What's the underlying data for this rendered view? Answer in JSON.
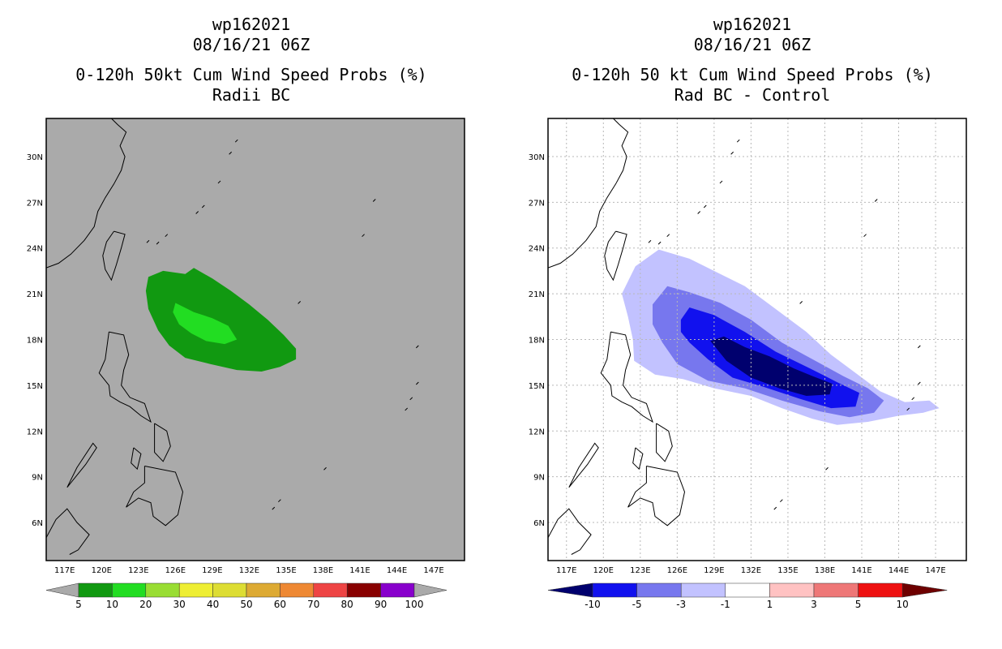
{
  "chart_data": [
    {
      "type": "heatmap",
      "id": "left",
      "title_lines": [
        "wp162021",
        "08/16/21 06Z",
        "0-120h 50kt Cum Wind Speed Probs (%)",
        "Radii BC"
      ],
      "x_ticks": [
        "117E",
        "120E",
        "123E",
        "126E",
        "129E",
        "132E",
        "135E",
        "138E",
        "141E",
        "144E",
        "147E"
      ],
      "y_ticks": [
        "30N",
        "27N",
        "24N",
        "21N",
        "18N",
        "15N",
        "12N",
        "9N",
        "6N"
      ],
      "xlim": [
        115.5,
        149.5
      ],
      "ylim": [
        3.5,
        32.5
      ],
      "grid": false,
      "background": "#aaaaaa",
      "levels": [
        {
          "label": "5-10",
          "color": "#119911",
          "polygon": [
            [
              123.8,
              22.1
            ],
            [
              125.0,
              22.5
            ],
            [
              126.8,
              22.3
            ],
            [
              127.5,
              22.7
            ],
            [
              129.0,
              22.0
            ],
            [
              130.5,
              21.2
            ],
            [
              132.0,
              20.3
            ],
            [
              133.5,
              19.3
            ],
            [
              134.8,
              18.3
            ],
            [
              135.8,
              17.4
            ],
            [
              135.8,
              16.7
            ],
            [
              134.5,
              16.2
            ],
            [
              133.0,
              15.9
            ],
            [
              131.0,
              16.0
            ],
            [
              128.8,
              16.4
            ],
            [
              126.8,
              16.8
            ],
            [
              125.5,
              17.6
            ],
            [
              124.6,
              18.6
            ],
            [
              123.8,
              20.0
            ],
            [
              123.6,
              21.2
            ]
          ]
        },
        {
          "label": "10-20",
          "color": "#22dd22",
          "polygon": [
            [
              126.0,
              20.4
            ],
            [
              127.5,
              19.8
            ],
            [
              129.0,
              19.4
            ],
            [
              130.3,
              18.9
            ],
            [
              131.0,
              18.0
            ],
            [
              130.0,
              17.7
            ],
            [
              128.5,
              17.9
            ],
            [
              127.3,
              18.4
            ],
            [
              126.3,
              19.0
            ],
            [
              125.8,
              19.8
            ]
          ]
        }
      ],
      "colorbar": {
        "labels": [
          "5",
          "10",
          "20",
          "30",
          "40",
          "50",
          "60",
          "70",
          "80",
          "90",
          "100"
        ],
        "colors": [
          "#119911",
          "#22dd22",
          "#99dd33",
          "#eeee33",
          "#dddd33",
          "#ddaa33",
          "#ee8833",
          "#ee4444",
          "#880000",
          "#8800cc"
        ],
        "end_colors": [
          "#aaaaaa",
          "#aaaaaa"
        ]
      }
    },
    {
      "type": "heatmap",
      "id": "right",
      "title_lines": [
        "wp162021",
        "08/16/21 06Z",
        "0-120h 50 kt Cum Wind Speed Probs (%)",
        "Rad BC - Control"
      ],
      "x_ticks": [
        "117E",
        "120E",
        "123E",
        "126E",
        "129E",
        "132E",
        "135E",
        "138E",
        "141E",
        "144E",
        "147E"
      ],
      "y_ticks": [
        "30N",
        "27N",
        "24N",
        "21N",
        "18N",
        "15N",
        "12N",
        "9N",
        "6N"
      ],
      "xlim": [
        115.5,
        149.5
      ],
      "ylim": [
        3.5,
        32.5
      ],
      "grid": true,
      "background": "#ffffff",
      "levels": [
        {
          "label": "-1 to -3",
          "color": "#c2c2ff",
          "polygon": [
            [
              121.5,
              21.0
            ],
            [
              122.6,
              22.8
            ],
            [
              124.5,
              23.9
            ],
            [
              127.0,
              23.3
            ],
            [
              129.5,
              22.3
            ],
            [
              131.5,
              21.5
            ],
            [
              134.0,
              20.0
            ],
            [
              136.5,
              18.5
            ],
            [
              138.5,
              17.0
            ],
            [
              140.5,
              15.8
            ],
            [
              142.5,
              14.6
            ],
            [
              144.5,
              13.9
            ],
            [
              146.5,
              14.0
            ],
            [
              147.3,
              13.5
            ],
            [
              146.0,
              13.2
            ],
            [
              144.0,
              13.0
            ],
            [
              141.5,
              12.6
            ],
            [
              139.0,
              12.4
            ],
            [
              137.0,
              12.8
            ],
            [
              134.5,
              13.5
            ],
            [
              132.0,
              14.3
            ],
            [
              129.0,
              14.8
            ],
            [
              126.5,
              15.4
            ],
            [
              124.2,
              15.7
            ],
            [
              122.5,
              16.6
            ],
            [
              122.4,
              18.0
            ],
            [
              122.0,
              19.5
            ]
          ]
        },
        {
          "label": "-3 to -5",
          "color": "#7777ee",
          "polygon": [
            [
              124.0,
              20.3
            ],
            [
              125.2,
              21.5
            ],
            [
              127.0,
              21.1
            ],
            [
              129.5,
              20.4
            ],
            [
              132.0,
              19.3
            ],
            [
              134.5,
              17.8
            ],
            [
              137.0,
              16.7
            ],
            [
              139.5,
              15.6
            ],
            [
              141.5,
              14.8
            ],
            [
              142.8,
              14.0
            ],
            [
              142.0,
              13.2
            ],
            [
              140.0,
              12.9
            ],
            [
              137.5,
              13.3
            ],
            [
              134.5,
              14.0
            ],
            [
              131.5,
              14.8
            ],
            [
              128.5,
              15.3
            ],
            [
              126.0,
              16.4
            ],
            [
              124.8,
              17.8
            ],
            [
              124.0,
              19.0
            ]
          ]
        },
        {
          "label": "-5 to -10",
          "color": "#1111ee",
          "polygon": [
            [
              126.3,
              19.3
            ],
            [
              127.0,
              20.1
            ],
            [
              129.0,
              19.6
            ],
            [
              131.5,
              18.5
            ],
            [
              134.0,
              17.2
            ],
            [
              136.8,
              16.1
            ],
            [
              139.0,
              15.2
            ],
            [
              140.8,
              14.5
            ],
            [
              140.5,
              13.6
            ],
            [
              138.5,
              13.5
            ],
            [
              136.0,
              14.1
            ],
            [
              133.0,
              14.9
            ],
            [
              130.5,
              15.5
            ],
            [
              128.5,
              16.7
            ],
            [
              127.0,
              17.8
            ],
            [
              126.3,
              18.5
            ]
          ]
        },
        {
          "label": "< -10",
          "color": "#00006e",
          "polygon": [
            [
              128.7,
              17.9
            ],
            [
              129.8,
              18.2
            ],
            [
              131.5,
              17.5
            ],
            [
              133.5,
              16.9
            ],
            [
              135.5,
              16.1
            ],
            [
              137.0,
              15.6
            ],
            [
              138.6,
              15.1
            ],
            [
              138.4,
              14.4
            ],
            [
              136.5,
              14.3
            ],
            [
              134.3,
              14.8
            ],
            [
              132.0,
              15.5
            ],
            [
              130.0,
              16.6
            ]
          ]
        }
      ],
      "colorbar": {
        "labels": [
          "-10",
          "-5",
          "-3",
          "-1",
          "1",
          "3",
          "5",
          "10"
        ],
        "colors": [
          "#1111ee",
          "#7777ee",
          "#c2c2ff",
          "#ffffff",
          "#ffc2c2",
          "#ee7777",
          "#ee1111"
        ],
        "end_colors": [
          "#00006e",
          "#6e0000"
        ]
      }
    }
  ]
}
